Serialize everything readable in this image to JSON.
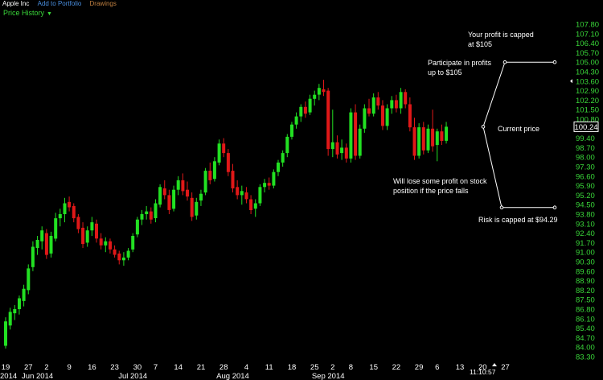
{
  "toolbar": {
    "symbol": "Apple Inc",
    "add_to_portfolio": "Add to Portfolio",
    "drawings": "Drawings"
  },
  "panel": {
    "title": "Price History",
    "dropdown_icon": "caret-down-icon"
  },
  "colors": {
    "up": "#22e022",
    "down": "#e01818",
    "axis_text": "#39d639",
    "background": "#000000"
  },
  "chart_data": {
    "type": "candlestick",
    "title": "",
    "xlabel": "",
    "ylabel": "",
    "ylim": [
      83.3,
      108.3
    ],
    "grid": false,
    "y_ticks": [
      "107.80",
      "107.10",
      "106.40",
      "105.70",
      "105.00",
      "104.30",
      "103.60",
      "102.90",
      "102.20",
      "101.50",
      "100.80",
      "99.40",
      "98.70",
      "98.00",
      "97.30",
      "96.60",
      "95.90",
      "95.20",
      "94.50",
      "93.80",
      "93.10",
      "92.40",
      "91.70",
      "91.00",
      "90.30",
      "89.60",
      "88.90",
      "88.20",
      "87.50",
      "86.80",
      "86.10",
      "85.40",
      "84.70",
      "84.00",
      "83.30"
    ],
    "current_price_label": "100.24",
    "x_day_labels": [
      {
        "label": "19",
        "i": 0
      },
      {
        "label": "27",
        "i": 5
      },
      {
        "label": "2",
        "i": 9
      },
      {
        "label": "9",
        "i": 14
      },
      {
        "label": "16",
        "i": 19
      },
      {
        "label": "23",
        "i": 24
      },
      {
        "label": "30",
        "i": 29
      },
      {
        "label": "7",
        "i": 33
      },
      {
        "label": "14",
        "i": 38
      },
      {
        "label": "21",
        "i": 43
      },
      {
        "label": "28",
        "i": 48
      },
      {
        "label": "4",
        "i": 53
      },
      {
        "label": "11",
        "i": 58
      },
      {
        "label": "18",
        "i": 63
      },
      {
        "label": "25",
        "i": 68
      },
      {
        "label": "2",
        "i": 72
      },
      {
        "label": "8",
        "i": 76
      },
      {
        "label": "15",
        "i": 81
      },
      {
        "label": "22",
        "i": 86
      },
      {
        "label": "29",
        "i": 91
      },
      {
        "label": "6",
        "i": 95
      },
      {
        "label": "13",
        "i": 100
      },
      {
        "label": "20",
        "i": 105
      },
      {
        "label": "27",
        "i": 110
      }
    ],
    "x_month_labels": [
      {
        "label": "2014",
        "i": 0
      },
      {
        "label": "Jun 2014",
        "i": 7
      },
      {
        "label": "Jul 2014",
        "i": 28
      },
      {
        "label": "Aug 2014",
        "i": 50
      },
      {
        "label": "Sep 2014",
        "i": 71
      }
    ],
    "clock": "11:10:57",
    "candles": [
      {
        "o": 84.1,
        "h": 86.2,
        "l": 83.9,
        "c": 85.9
      },
      {
        "o": 85.6,
        "h": 86.9,
        "l": 85.3,
        "c": 86.6
      },
      {
        "o": 86.5,
        "h": 87.1,
        "l": 86.0,
        "c": 86.8
      },
      {
        "o": 86.8,
        "h": 87.8,
        "l": 86.4,
        "c": 87.6
      },
      {
        "o": 87.4,
        "h": 88.6,
        "l": 87.0,
        "c": 88.3
      },
      {
        "o": 88.2,
        "h": 90.1,
        "l": 87.9,
        "c": 89.8
      },
      {
        "o": 89.9,
        "h": 91.8,
        "l": 89.6,
        "c": 91.4
      },
      {
        "o": 91.3,
        "h": 92.2,
        "l": 90.8,
        "c": 91.9
      },
      {
        "o": 91.8,
        "h": 92.9,
        "l": 91.2,
        "c": 92.6
      },
      {
        "o": 92.4,
        "h": 92.7,
        "l": 90.5,
        "c": 90.8
      },
      {
        "o": 90.9,
        "h": 92.5,
        "l": 90.6,
        "c": 92.2
      },
      {
        "o": 92.0,
        "h": 93.9,
        "l": 91.8,
        "c": 93.5
      },
      {
        "o": 93.5,
        "h": 94.2,
        "l": 92.9,
        "c": 93.8
      },
      {
        "o": 93.8,
        "h": 95.0,
        "l": 93.2,
        "c": 94.6
      },
      {
        "o": 94.7,
        "h": 95.1,
        "l": 94.0,
        "c": 94.3
      },
      {
        "o": 94.4,
        "h": 94.6,
        "l": 93.2,
        "c": 93.5
      },
      {
        "o": 93.6,
        "h": 93.8,
        "l": 92.4,
        "c": 92.7
      },
      {
        "o": 92.8,
        "h": 93.2,
        "l": 91.3,
        "c": 91.6
      },
      {
        "o": 91.7,
        "h": 92.9,
        "l": 91.4,
        "c": 92.6
      },
      {
        "o": 92.6,
        "h": 93.6,
        "l": 92.2,
        "c": 93.2
      },
      {
        "o": 93.1,
        "h": 93.4,
        "l": 91.7,
        "c": 92.0
      },
      {
        "o": 92.0,
        "h": 92.4,
        "l": 91.2,
        "c": 91.5
      },
      {
        "o": 91.5,
        "h": 92.1,
        "l": 91.0,
        "c": 91.8
      },
      {
        "o": 91.8,
        "h": 92.0,
        "l": 90.9,
        "c": 91.2
      },
      {
        "o": 91.2,
        "h": 91.5,
        "l": 90.6,
        "c": 90.8
      },
      {
        "o": 90.9,
        "h": 91.1,
        "l": 90.1,
        "c": 90.4
      },
      {
        "o": 90.4,
        "h": 91.0,
        "l": 90.0,
        "c": 90.6
      },
      {
        "o": 90.6,
        "h": 91.3,
        "l": 90.4,
        "c": 91.1
      },
      {
        "o": 91.2,
        "h": 92.4,
        "l": 91.0,
        "c": 92.2
      },
      {
        "o": 92.3,
        "h": 93.6,
        "l": 92.1,
        "c": 93.4
      },
      {
        "o": 93.4,
        "h": 94.1,
        "l": 93.0,
        "c": 93.8
      },
      {
        "o": 93.8,
        "h": 94.4,
        "l": 93.4,
        "c": 94.0
      },
      {
        "o": 94.0,
        "h": 94.3,
        "l": 93.1,
        "c": 93.4
      },
      {
        "o": 93.5,
        "h": 94.9,
        "l": 93.2,
        "c": 94.6
      },
      {
        "o": 94.5,
        "h": 96.0,
        "l": 94.3,
        "c": 95.8
      },
      {
        "o": 95.7,
        "h": 96.3,
        "l": 94.9,
        "c": 95.2
      },
      {
        "o": 95.2,
        "h": 95.6,
        "l": 93.8,
        "c": 94.1
      },
      {
        "o": 94.2,
        "h": 95.9,
        "l": 94.0,
        "c": 95.6
      },
      {
        "o": 95.6,
        "h": 96.6,
        "l": 95.2,
        "c": 96.3
      },
      {
        "o": 96.3,
        "h": 96.8,
        "l": 95.2,
        "c": 95.5
      },
      {
        "o": 95.6,
        "h": 96.2,
        "l": 94.8,
        "c": 95.1
      },
      {
        "o": 95.0,
        "h": 95.4,
        "l": 93.3,
        "c": 93.6
      },
      {
        "o": 93.7,
        "h": 95.0,
        "l": 93.4,
        "c": 94.7
      },
      {
        "o": 94.8,
        "h": 95.6,
        "l": 94.4,
        "c": 95.3
      },
      {
        "o": 95.4,
        "h": 97.2,
        "l": 95.2,
        "c": 97.0
      },
      {
        "o": 97.0,
        "h": 97.6,
        "l": 96.0,
        "c": 96.3
      },
      {
        "o": 96.4,
        "h": 98.0,
        "l": 96.2,
        "c": 97.7
      },
      {
        "o": 97.6,
        "h": 99.3,
        "l": 97.4,
        "c": 99.0
      },
      {
        "o": 99.0,
        "h": 99.4,
        "l": 98.0,
        "c": 98.3
      },
      {
        "o": 98.3,
        "h": 98.6,
        "l": 96.6,
        "c": 96.9
      },
      {
        "o": 97.0,
        "h": 97.5,
        "l": 95.4,
        "c": 95.7
      },
      {
        "o": 95.8,
        "h": 96.3,
        "l": 94.9,
        "c": 95.2
      },
      {
        "o": 95.2,
        "h": 95.9,
        "l": 94.5,
        "c": 95.5
      },
      {
        "o": 95.4,
        "h": 95.8,
        "l": 94.6,
        "c": 94.9
      },
      {
        "o": 94.9,
        "h": 95.2,
        "l": 93.8,
        "c": 94.1
      },
      {
        "o": 94.2,
        "h": 94.9,
        "l": 93.6,
        "c": 94.6
      },
      {
        "o": 94.6,
        "h": 96.0,
        "l": 94.4,
        "c": 95.8
      },
      {
        "o": 95.8,
        "h": 96.4,
        "l": 95.4,
        "c": 96.1
      },
      {
        "o": 96.1,
        "h": 96.5,
        "l": 95.6,
        "c": 95.9
      },
      {
        "o": 95.9,
        "h": 97.1,
        "l": 95.7,
        "c": 96.9
      },
      {
        "o": 96.9,
        "h": 97.8,
        "l": 96.6,
        "c": 97.6
      },
      {
        "o": 97.6,
        "h": 98.5,
        "l": 97.3,
        "c": 98.3
      },
      {
        "o": 98.3,
        "h": 99.7,
        "l": 98.0,
        "c": 99.5
      },
      {
        "o": 99.5,
        "h": 100.6,
        "l": 99.3,
        "c": 100.4
      },
      {
        "o": 100.4,
        "h": 101.3,
        "l": 100.1,
        "c": 101.0
      },
      {
        "o": 101.0,
        "h": 101.9,
        "l": 100.6,
        "c": 101.7
      },
      {
        "o": 101.7,
        "h": 102.1,
        "l": 100.9,
        "c": 101.2
      },
      {
        "o": 101.3,
        "h": 102.6,
        "l": 101.1,
        "c": 102.3
      },
      {
        "o": 102.3,
        "h": 102.9,
        "l": 101.8,
        "c": 102.6
      },
      {
        "o": 102.6,
        "h": 103.4,
        "l": 102.2,
        "c": 103.1
      },
      {
        "o": 103.0,
        "h": 103.7,
        "l": 102.5,
        "c": 102.8
      },
      {
        "o": 102.9,
        "h": 103.1,
        "l": 98.1,
        "c": 98.6
      },
      {
        "o": 98.6,
        "h": 101.5,
        "l": 98.0,
        "c": 99.1
      },
      {
        "o": 99.1,
        "h": 99.6,
        "l": 97.9,
        "c": 98.2
      },
      {
        "o": 98.3,
        "h": 99.3,
        "l": 97.8,
        "c": 98.7
      },
      {
        "o": 98.7,
        "h": 99.0,
        "l": 97.6,
        "c": 97.9
      },
      {
        "o": 97.9,
        "h": 101.6,
        "l": 97.6,
        "c": 101.3
      },
      {
        "o": 101.3,
        "h": 101.9,
        "l": 97.8,
        "c": 98.1
      },
      {
        "o": 98.1,
        "h": 100.4,
        "l": 97.9,
        "c": 100.1
      },
      {
        "o": 100.1,
        "h": 101.9,
        "l": 99.8,
        "c": 101.6
      },
      {
        "o": 101.6,
        "h": 102.3,
        "l": 101.0,
        "c": 101.2
      },
      {
        "o": 101.2,
        "h": 102.7,
        "l": 101.0,
        "c": 102.4
      },
      {
        "o": 102.4,
        "h": 102.8,
        "l": 101.5,
        "c": 101.8
      },
      {
        "o": 101.8,
        "h": 102.2,
        "l": 100.0,
        "c": 100.3
      },
      {
        "o": 100.3,
        "h": 101.9,
        "l": 100.0,
        "c": 101.6
      },
      {
        "o": 101.6,
        "h": 102.5,
        "l": 101.2,
        "c": 102.2
      },
      {
        "o": 102.2,
        "h": 102.6,
        "l": 101.3,
        "c": 101.6
      },
      {
        "o": 101.6,
        "h": 103.1,
        "l": 101.2,
        "c": 102.8
      },
      {
        "o": 102.8,
        "h": 103.0,
        "l": 101.6,
        "c": 101.9
      },
      {
        "o": 101.9,
        "h": 102.4,
        "l": 99.9,
        "c": 100.2
      },
      {
        "o": 100.2,
        "h": 100.9,
        "l": 97.8,
        "c": 98.1
      },
      {
        "o": 98.1,
        "h": 100.5,
        "l": 97.9,
        "c": 100.2
      },
      {
        "o": 100.2,
        "h": 100.6,
        "l": 98.2,
        "c": 98.5
      },
      {
        "o": 98.5,
        "h": 100.4,
        "l": 98.3,
        "c": 100.1
      },
      {
        "o": 100.1,
        "h": 101.5,
        "l": 98.4,
        "c": 98.8
      },
      {
        "o": 98.9,
        "h": 100.1,
        "l": 97.7,
        "c": 99.9
      },
      {
        "o": 99.9,
        "h": 100.4,
        "l": 98.9,
        "c": 99.2
      },
      {
        "o": 99.2,
        "h": 100.6,
        "l": 99.0,
        "c": 100.24
      }
    ],
    "annotations": [
      {
        "lines": [
          "Your profit is capped",
          "at $105"
        ]
      },
      {
        "lines": [
          "Participate in profits",
          "up to $105"
        ]
      },
      {
        "lines": [
          "Current price"
        ]
      },
      {
        "lines": [
          "Will lose some profit on stock",
          "position if the price falls"
        ]
      },
      {
        "lines": [
          "Risk is capped at $94.29"
        ]
      }
    ],
    "payoff_lines": {
      "cap_price": 105.0,
      "risk_price": 94.29,
      "current_price": 100.24
    }
  }
}
